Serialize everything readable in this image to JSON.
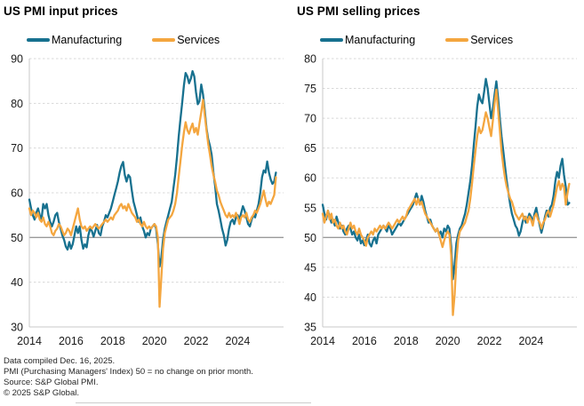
{
  "figure": {
    "background": "#ffffff",
    "grid_color": "#d8d8d8",
    "baseline_color": "#9a9a9a",
    "axis_color": "#c8c8c8"
  },
  "chart_data": [
    {
      "type": "line",
      "title": "US PMI input prices",
      "xlabel": "",
      "ylabel": "",
      "ylim": [
        30,
        90
      ],
      "yticks": [
        30,
        40,
        50,
        60,
        70,
        80,
        90
      ],
      "baseline": 50,
      "grid": "dashed-horizontal",
      "legend_position": "top",
      "xticks": [
        2014,
        2016,
        2018,
        2020,
        2022,
        2024
      ],
      "x_domain": [
        2014,
        2026.2
      ],
      "x_monthly_start": "2014-01",
      "x_monthly_end": "2025-11",
      "series": [
        {
          "name": "Manufacturing",
          "color": "#17718f",
          "values": [
            58.5,
            56.5,
            55.0,
            54.0,
            55.5,
            56.5,
            55.0,
            54.0,
            57.5,
            56.5,
            57.5,
            55.0,
            53.5,
            52.5,
            53.5,
            55.0,
            55.5,
            53.5,
            52.0,
            50.5,
            49.5,
            48.0,
            47.3,
            49.0,
            47.5,
            48.5,
            50.5,
            52.5,
            51.0,
            52.5,
            49.5,
            47.5,
            48.5,
            47.8,
            50.5,
            52.0,
            51.5,
            50.2,
            51.5,
            52.8,
            51.0,
            50.5,
            52.5,
            53.5,
            55.0,
            54.5,
            55.5,
            56.5,
            58.0,
            59.5,
            61.0,
            62.5,
            64.5,
            66.0,
            66.9,
            64.0,
            62.5,
            64.0,
            63.5,
            60.5,
            58.0,
            56.5,
            55.0,
            53.5,
            54.5,
            52.5,
            51.5,
            50.0,
            51.0,
            50.5,
            52.0,
            52.5,
            53.0,
            52.0,
            48.5,
            43.5,
            45.5,
            49.5,
            52.0,
            53.5,
            55.0,
            56.5,
            58.0,
            61.0,
            64.0,
            68.0,
            72.5,
            76.5,
            80.0,
            84.0,
            86.8,
            86.0,
            84.5,
            85.5,
            87.2,
            86.0,
            82.5,
            79.8,
            80.5,
            84.2,
            82.0,
            78.5,
            74.5,
            72.0,
            70.5,
            68.5,
            64.5,
            61.5,
            57.5,
            56.0,
            54.0,
            52.0,
            50.5,
            48.2,
            49.5,
            52.0,
            53.5,
            54.0,
            53.0,
            54.5,
            55.0,
            54.0,
            55.5,
            57.0,
            56.0,
            54.5,
            53.0,
            52.5,
            54.0,
            55.0,
            54.5,
            56.0,
            57.5,
            60.0,
            63.5,
            65.0,
            64.5,
            67.0,
            64.5,
            63.0,
            62.0,
            62.5,
            64.5
          ]
        },
        {
          "name": "Services",
          "color": "#f4a63f",
          "values": [
            56.5,
            55.0,
            56.0,
            55.5,
            54.5,
            55.5,
            54.0,
            53.5,
            54.5,
            53.0,
            52.5,
            53.5,
            52.5,
            51.0,
            50.5,
            51.5,
            52.0,
            53.0,
            52.5,
            51.5,
            50.5,
            51.0,
            52.0,
            51.5,
            50.5,
            52.0,
            53.5,
            55.0,
            56.5,
            54.0,
            52.5,
            52.0,
            52.5,
            51.5,
            52.0,
            52.5,
            52.0,
            52.5,
            53.0,
            52.5,
            52.0,
            52.5,
            53.0,
            53.5,
            54.0,
            53.5,
            54.0,
            54.5,
            54.0,
            55.0,
            55.5,
            56.0,
            57.0,
            57.5,
            56.5,
            57.0,
            56.0,
            57.5,
            56.5,
            55.5,
            55.0,
            54.5,
            53.5,
            54.0,
            53.0,
            52.5,
            53.5,
            52.5,
            52.0,
            52.5,
            52.0,
            52.5,
            53.0,
            52.5,
            50.0,
            34.5,
            41.0,
            47.5,
            51.0,
            52.5,
            54.0,
            54.5,
            55.0,
            56.0,
            57.5,
            60.0,
            63.5,
            67.0,
            70.5,
            73.5,
            75.8,
            74.0,
            73.2,
            74.5,
            75.5,
            73.5,
            74.5,
            73.0,
            75.5,
            78.0,
            80.8,
            77.5,
            74.0,
            71.0,
            68.5,
            66.0,
            64.0,
            62.5,
            60.5,
            59.5,
            58.0,
            57.0,
            56.0,
            55.0,
            54.5,
            55.5,
            54.5,
            55.0,
            54.5,
            55.5,
            54.5,
            53.0,
            54.5,
            55.0,
            54.5,
            55.5,
            54.0,
            53.5,
            54.5,
            55.0,
            56.0,
            55.5,
            56.5,
            57.5,
            59.0,
            60.5,
            58.5,
            57.0,
            58.0,
            57.5,
            58.5,
            59.5,
            63.5
          ]
        }
      ]
    },
    {
      "type": "line",
      "title": "US PMI selling prices",
      "xlabel": "",
      "ylabel": "",
      "ylim": [
        35,
        80
      ],
      "yticks": [
        35,
        40,
        45,
        50,
        55,
        60,
        65,
        70,
        75,
        80
      ],
      "baseline": 50,
      "grid": "dashed-horizontal",
      "legend_position": "top",
      "xticks": [
        2014,
        2016,
        2018,
        2020,
        2022,
        2024
      ],
      "x_domain": [
        2014,
        2026.2
      ],
      "x_monthly_start": "2014-01",
      "x_monthly_end": "2025-11",
      "series": [
        {
          "name": "Manufacturing",
          "color": "#17718f",
          "values": [
            55.5,
            54.0,
            53.0,
            54.5,
            53.5,
            52.5,
            53.0,
            52.0,
            53.5,
            52.5,
            51.5,
            52.0,
            51.0,
            50.5,
            51.5,
            52.0,
            51.5,
            50.5,
            51.0,
            50.0,
            49.5,
            50.5,
            49.0,
            49.5,
            48.7,
            49.5,
            50.5,
            49.0,
            48.5,
            49.5,
            50.0,
            49.0,
            50.5,
            51.0,
            51.5,
            52.0,
            51.5,
            51.0,
            52.0,
            51.5,
            50.5,
            51.0,
            51.5,
            52.0,
            52.5,
            52.0,
            52.5,
            53.0,
            53.5,
            54.0,
            54.5,
            55.0,
            55.5,
            56.5,
            57.4,
            56.5,
            55.5,
            57.0,
            56.0,
            54.5,
            53.5,
            52.5,
            53.0,
            52.0,
            51.5,
            51.0,
            51.5,
            50.5,
            51.0,
            50.0,
            51.5,
            51.0,
            52.0,
            51.5,
            48.5,
            43.0,
            45.5,
            49.0,
            50.5,
            51.5,
            52.0,
            53.0,
            54.0,
            55.5,
            57.5,
            59.5,
            62.0,
            65.5,
            68.5,
            72.0,
            74.0,
            73.0,
            72.5,
            74.5,
            76.6,
            75.0,
            72.5,
            70.0,
            71.5,
            74.0,
            76.2,
            73.5,
            70.0,
            67.0,
            64.5,
            62.0,
            59.5,
            57.5,
            55.5,
            54.0,
            53.0,
            52.0,
            51.5,
            50.3,
            51.0,
            52.5,
            53.5,
            52.5,
            53.0,
            54.0,
            53.5,
            52.5,
            54.0,
            55.0,
            53.5,
            52.0,
            50.8,
            52.0,
            53.5,
            54.5,
            53.5,
            55.0,
            55.5,
            57.0,
            59.5,
            61.0,
            60.0,
            62.0,
            63.2,
            60.5,
            58.5,
            55.5,
            55.8
          ]
        },
        {
          "name": "Services",
          "color": "#f4a63f",
          "values": [
            54.0,
            52.5,
            53.5,
            54.5,
            53.0,
            54.0,
            52.5,
            53.0,
            52.0,
            51.5,
            52.5,
            51.5,
            52.0,
            51.0,
            50.5,
            51.5,
            52.5,
            51.5,
            52.0,
            51.0,
            50.5,
            51.5,
            50.5,
            50.0,
            49.5,
            48.6,
            50.0,
            50.5,
            51.0,
            50.5,
            51.5,
            51.0,
            51.5,
            52.0,
            51.5,
            52.0,
            51.5,
            52.0,
            52.5,
            52.0,
            51.5,
            52.0,
            52.5,
            53.0,
            52.5,
            53.0,
            53.5,
            53.0,
            53.5,
            54.5,
            55.0,
            55.5,
            56.0,
            56.5,
            55.5,
            56.5,
            55.5,
            56.0,
            55.0,
            54.0,
            53.5,
            53.0,
            52.5,
            52.0,
            51.5,
            51.0,
            51.5,
            50.5,
            49.5,
            48.4,
            49.5,
            50.5,
            51.0,
            50.5,
            47.0,
            37.0,
            40.5,
            46.0,
            49.5,
            51.0,
            51.5,
            52.0,
            52.5,
            53.5,
            54.5,
            56.5,
            59.0,
            62.0,
            64.5,
            67.0,
            68.5,
            67.5,
            68.0,
            69.5,
            71.0,
            70.0,
            68.5,
            67.0,
            69.5,
            72.5,
            74.8,
            71.5,
            68.0,
            64.5,
            62.0,
            60.0,
            58.5,
            57.5,
            56.5,
            56.0,
            55.0,
            54.0,
            53.5,
            53.0,
            53.5,
            54.0,
            53.0,
            53.5,
            52.5,
            53.5,
            53.0,
            52.0,
            53.5,
            54.0,
            53.0,
            52.5,
            51.5,
            52.5,
            53.0,
            54.0,
            54.5,
            53.5,
            54.5,
            55.5,
            57.0,
            58.5,
            59.5,
            58.0,
            59.0,
            58.5,
            55.5,
            57.5,
            59.0
          ]
        }
      ]
    }
  ],
  "footer": {
    "lines": [
      "Data compiled Dec. 16, 2025.",
      "PMI (Purchasing Managers' Index) 50 =  no change on prior month.",
      "Source: S&P Global PMI.",
      "© 2025 S&P Global."
    ]
  }
}
